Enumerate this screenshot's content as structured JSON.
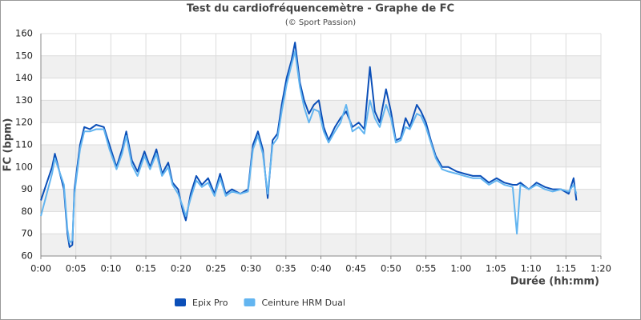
{
  "chart_data": {
    "type": "line",
    "title": "Test du cardiofréquencemètre - Graphe de FC",
    "subtitle": "(© Sport Passion)",
    "x_label": "Durée (hh:mm)",
    "y_label": "FC (bpm)",
    "x": [
      0,
      1.6,
      2,
      3.3,
      3.8,
      4.1,
      4.5,
      4.8,
      5.6,
      6.2,
      7,
      7.9,
      9,
      9.8,
      10.8,
      11.6,
      12.2,
      13,
      13.8,
      14.8,
      15.6,
      16.5,
      17.3,
      18.2,
      18.8,
      19.6,
      20.3,
      20.7,
      21.4,
      22.2,
      23,
      23.9,
      24.8,
      25.6,
      26.4,
      27.3,
      28.5,
      29.6,
      30.3,
      31,
      31.7,
      32.4,
      33.1,
      33.8,
      34.4,
      35.1,
      35.8,
      36.3,
      37,
      37.6,
      38.3,
      39,
      39.7,
      40.4,
      41.1,
      42,
      42.8,
      43.6,
      44.5,
      45.4,
      46.2,
      47,
      47.7,
      48.4,
      49.3,
      50,
      50.7,
      51.4,
      52.1,
      52.7,
      53.7,
      54.3,
      55,
      55.7,
      56.4,
      57.3,
      58.2,
      59.4,
      60.5,
      61.7,
      62.8,
      64,
      65.1,
      66.2,
      67.4,
      68,
      68.5,
      69.7,
      70.8,
      72,
      73.1,
      74.3,
      75.4,
      76.1,
      76.5
    ],
    "series": [
      {
        "name": "Epix Pro",
        "color": "#0b4fb8",
        "values": [
          85,
          100,
          106,
          90,
          70,
          64,
          65,
          90,
          110,
          118,
          117,
          119,
          118,
          110,
          100,
          108,
          116,
          103,
          98,
          107,
          100,
          108,
          97,
          102,
          93,
          90,
          80,
          76,
          88,
          96,
          92,
          95,
          88,
          97,
          88,
          90,
          88,
          90,
          110,
          116,
          108,
          86,
          112,
          115,
          128,
          140,
          148,
          156,
          138,
          130,
          124,
          128,
          130,
          118,
          112,
          118,
          122,
          125,
          118,
          120,
          117,
          145,
          125,
          120,
          135,
          125,
          112,
          113,
          122,
          118,
          128,
          125,
          120,
          112,
          105,
          100,
          100,
          98,
          97,
          96,
          96,
          93,
          95,
          93,
          92,
          92,
          93,
          90,
          93,
          91,
          90,
          90,
          88,
          95,
          85
        ]
      },
      {
        "name": "Ceinture HRM Dual",
        "color": "#63b5f0",
        "values": [
          78,
          97,
          104,
          92,
          72,
          66,
          67,
          88,
          108,
          116,
          116,
          117,
          117,
          108,
          99,
          106,
          114,
          101,
          96,
          105,
          99,
          106,
          96,
          100,
          92,
          88,
          82,
          78,
          86,
          94,
          91,
          93,
          87,
          95,
          87,
          89,
          88,
          89,
          108,
          114,
          106,
          88,
          110,
          113,
          125,
          137,
          146,
          152,
          136,
          127,
          120,
          126,
          125,
          116,
          111,
          116,
          120,
          128,
          116,
          118,
          115,
          130,
          122,
          118,
          128,
          122,
          111,
          112,
          118,
          117,
          124,
          123,
          118,
          111,
          104,
          99,
          98,
          97,
          96,
          95,
          95,
          92,
          94,
          92,
          91,
          70,
          92,
          90,
          92,
          90,
          89,
          90,
          89,
          92,
          88
        ]
      }
    ],
    "xlim": [
      0,
      80
    ],
    "ylim": [
      60,
      160
    ],
    "xticks": [
      {
        "value": 0,
        "label": "0:00"
      },
      {
        "value": 5,
        "label": "0:05"
      },
      {
        "value": 10,
        "label": "0:10"
      },
      {
        "value": 15,
        "label": "0:15"
      },
      {
        "value": 20,
        "label": "0:20"
      },
      {
        "value": 25,
        "label": "0:25"
      },
      {
        "value": 30,
        "label": "0:30"
      },
      {
        "value": 35,
        "label": "0:35"
      },
      {
        "value": 40,
        "label": "0:40"
      },
      {
        "value": 45,
        "label": "0:45"
      },
      {
        "value": 50,
        "label": "0:50"
      },
      {
        "value": 55,
        "label": "0:55"
      },
      {
        "value": 60,
        "label": "1:00"
      },
      {
        "value": 65,
        "label": "1:05"
      },
      {
        "value": 70,
        "label": "1:10"
      },
      {
        "value": 75,
        "label": "1:15"
      },
      {
        "value": 80,
        "label": "1:20"
      }
    ],
    "yticks": [
      60,
      70,
      80,
      90,
      100,
      110,
      120,
      130,
      140,
      150,
      160
    ],
    "grid": true
  }
}
